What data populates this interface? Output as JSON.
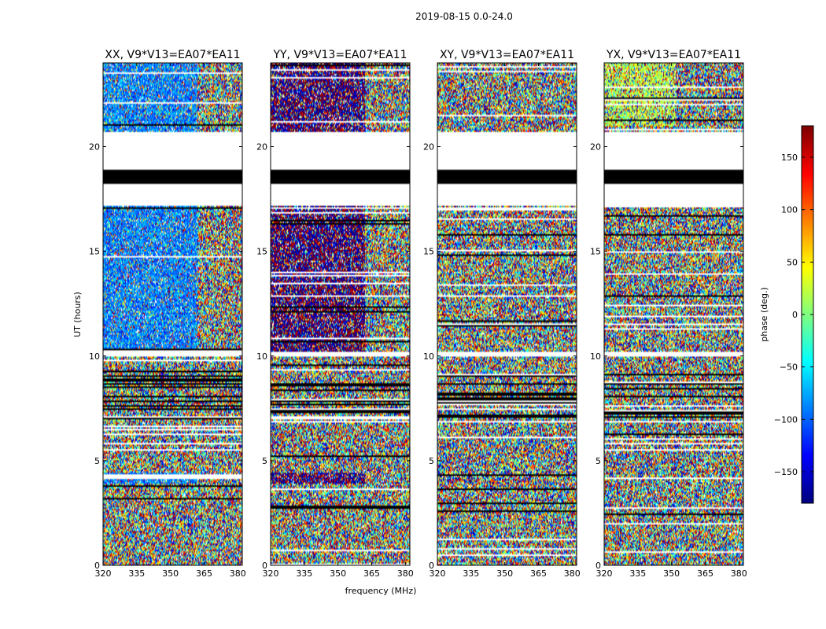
{
  "figure": {
    "suptitle": "2019-08-15 0.0-24.0"
  },
  "chart_data": {
    "type": "heatmap",
    "x_label": "frequency (MHz)",
    "y_label": "UT (hours)",
    "xlim": [
      320,
      382
    ],
    "ylim": [
      0,
      24
    ],
    "x_ticks": [
      320,
      335,
      350,
      365,
      380
    ],
    "y_ticks": [
      0,
      5,
      10,
      15,
      20
    ],
    "panels": [
      {
        "title": "XX, V9*V13=EA07*EA11",
        "mode": "parallel-xx"
      },
      {
        "title": "YY, V9*V13=EA07*EA11",
        "mode": "parallel-yy"
      },
      {
        "title": "XY, V9*V13=EA07*EA11",
        "mode": "cross"
      },
      {
        "title": "YX, V9*V13=EA07*EA11",
        "mode": "cross-yx"
      }
    ],
    "colorbar": {
      "label": "phase (deg.)",
      "range": [
        -180,
        180
      ],
      "ticks": [
        150,
        100,
        50,
        0,
        -50,
        -100,
        -150
      ],
      "tick_labels": [
        "150",
        "100",
        "50",
        "0",
        "−50",
        "−100",
        "−150"
      ],
      "colormap": "jet"
    },
    "blank_ut_ranges": [
      [
        17.2,
        18.9
      ],
      [
        18.9,
        20.7
      ],
      [
        9.95,
        10.2
      ]
    ],
    "flagged_black_ut_ranges": [
      [
        18.2,
        18.9
      ]
    ]
  }
}
